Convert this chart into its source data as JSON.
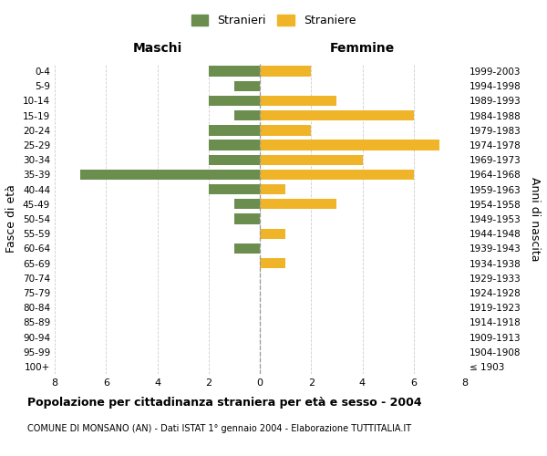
{
  "age_groups": [
    "100+",
    "95-99",
    "90-94",
    "85-89",
    "80-84",
    "75-79",
    "70-74",
    "65-69",
    "60-64",
    "55-59",
    "50-54",
    "45-49",
    "40-44",
    "35-39",
    "30-34",
    "25-29",
    "20-24",
    "15-19",
    "10-14",
    "5-9",
    "0-4"
  ],
  "birth_years": [
    "≤ 1903",
    "1904-1908",
    "1909-1913",
    "1914-1918",
    "1919-1923",
    "1924-1928",
    "1929-1933",
    "1934-1938",
    "1939-1943",
    "1944-1948",
    "1949-1953",
    "1954-1958",
    "1959-1963",
    "1964-1968",
    "1969-1973",
    "1974-1978",
    "1979-1983",
    "1984-1988",
    "1989-1993",
    "1994-1998",
    "1999-2003"
  ],
  "males": [
    0,
    0,
    0,
    0,
    0,
    0,
    0,
    0,
    1,
    0,
    1,
    1,
    2,
    7,
    2,
    2,
    2,
    1,
    2,
    1,
    2
  ],
  "females": [
    0,
    0,
    0,
    0,
    0,
    0,
    0,
    1,
    0,
    1,
    0,
    3,
    1,
    6,
    4,
    7,
    2,
    6,
    3,
    0,
    2
  ],
  "male_color": "#6b8e4e",
  "female_color": "#f0b429",
  "title": "Popolazione per cittadinanza straniera per età e sesso - 2004",
  "subtitle": "COMUNE DI MONSANO (AN) - Dati ISTAT 1° gennaio 2004 - Elaborazione TUTTITALIA.IT",
  "xlabel_left": "Maschi",
  "xlabel_right": "Femmine",
  "ylabel_left": "Fasce di età",
  "ylabel_right": "Anni di nascita",
  "legend_male": "Stranieri",
  "legend_female": "Straniere",
  "xlim": 8,
  "background_color": "#ffffff",
  "grid_color": "#cccccc"
}
